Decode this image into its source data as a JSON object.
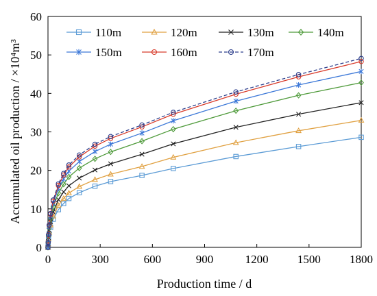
{
  "chart_data": {
    "type": "line",
    "xlabel": "Production time / d",
    "ylabel": "Accumulated oil production / ×10⁴m³",
    "xlim": [
      0,
      1800
    ],
    "ylim": [
      0,
      60
    ],
    "xticks": [
      "0",
      "300",
      "600",
      "900",
      "1200",
      "1500",
      "1800"
    ],
    "yticks": [
      "0",
      "10",
      "20",
      "30",
      "40",
      "50",
      "60"
    ],
    "grid": false,
    "legend": "top-left, inside plot, 4 columns",
    "x": [
      0,
      1,
      3,
      7,
      15,
      30,
      60,
      90,
      120,
      180,
      270,
      360,
      540,
      720,
      1080,
      1440,
      1800
    ],
    "series": [
      {
        "name": "110m",
        "color": "#5b9bd5",
        "marker": "square",
        "values": [
          0,
          0.8,
          2.0,
          3.5,
          5.2,
          7.3,
          9.8,
          11.4,
          12.7,
          14.2,
          15.9,
          17.1,
          18.7,
          20.5,
          23.6,
          26.2,
          28.6
        ]
      },
      {
        "name": "120m",
        "color": "#e0a040",
        "marker": "triangle",
        "values": [
          0,
          0.9,
          2.2,
          3.9,
          5.8,
          8.1,
          10.9,
          12.7,
          14.1,
          15.8,
          17.6,
          19.0,
          21.0,
          23.4,
          27.2,
          30.3,
          33.0
        ]
      },
      {
        "name": "130m",
        "color": "#222222",
        "marker": "x",
        "values": [
          0,
          1.0,
          2.5,
          4.4,
          6.6,
          9.2,
          12.4,
          14.4,
          16.0,
          18.0,
          20.1,
          21.7,
          24.2,
          26.9,
          31.2,
          34.6,
          37.6
        ]
      },
      {
        "name": "140m",
        "color": "#4e9a3a",
        "marker": "diamond",
        "values": [
          0,
          1.1,
          2.8,
          5.0,
          7.5,
          10.5,
          14.1,
          16.4,
          18.3,
          20.6,
          23.0,
          24.8,
          27.6,
          30.7,
          35.5,
          39.5,
          42.8
        ]
      },
      {
        "name": "150m",
        "color": "#3c78d8",
        "marker": "star",
        "values": [
          0,
          1.2,
          3.0,
          5.4,
          8.1,
          11.4,
          15.3,
          17.8,
          19.8,
          22.3,
          24.9,
          26.8,
          29.7,
          32.9,
          38.0,
          42.2,
          45.7
        ]
      },
      {
        "name": "160m",
        "color": "#d83a2a",
        "marker": "circle",
        "values": [
          0,
          1.3,
          3.2,
          5.7,
          8.6,
          12.0,
          16.1,
          18.8,
          20.9,
          23.5,
          26.3,
          28.3,
          31.3,
          34.6,
          39.8,
          44.3,
          48.3
        ]
      },
      {
        "name": "170m",
        "color": "#2c3e8c",
        "marker": "circle",
        "dashed": true,
        "values": [
          0,
          1.3,
          3.3,
          5.8,
          8.8,
          12.3,
          16.5,
          19.2,
          21.4,
          24.0,
          26.8,
          28.8,
          31.8,
          35.1,
          40.4,
          44.9,
          49.1
        ]
      }
    ]
  }
}
